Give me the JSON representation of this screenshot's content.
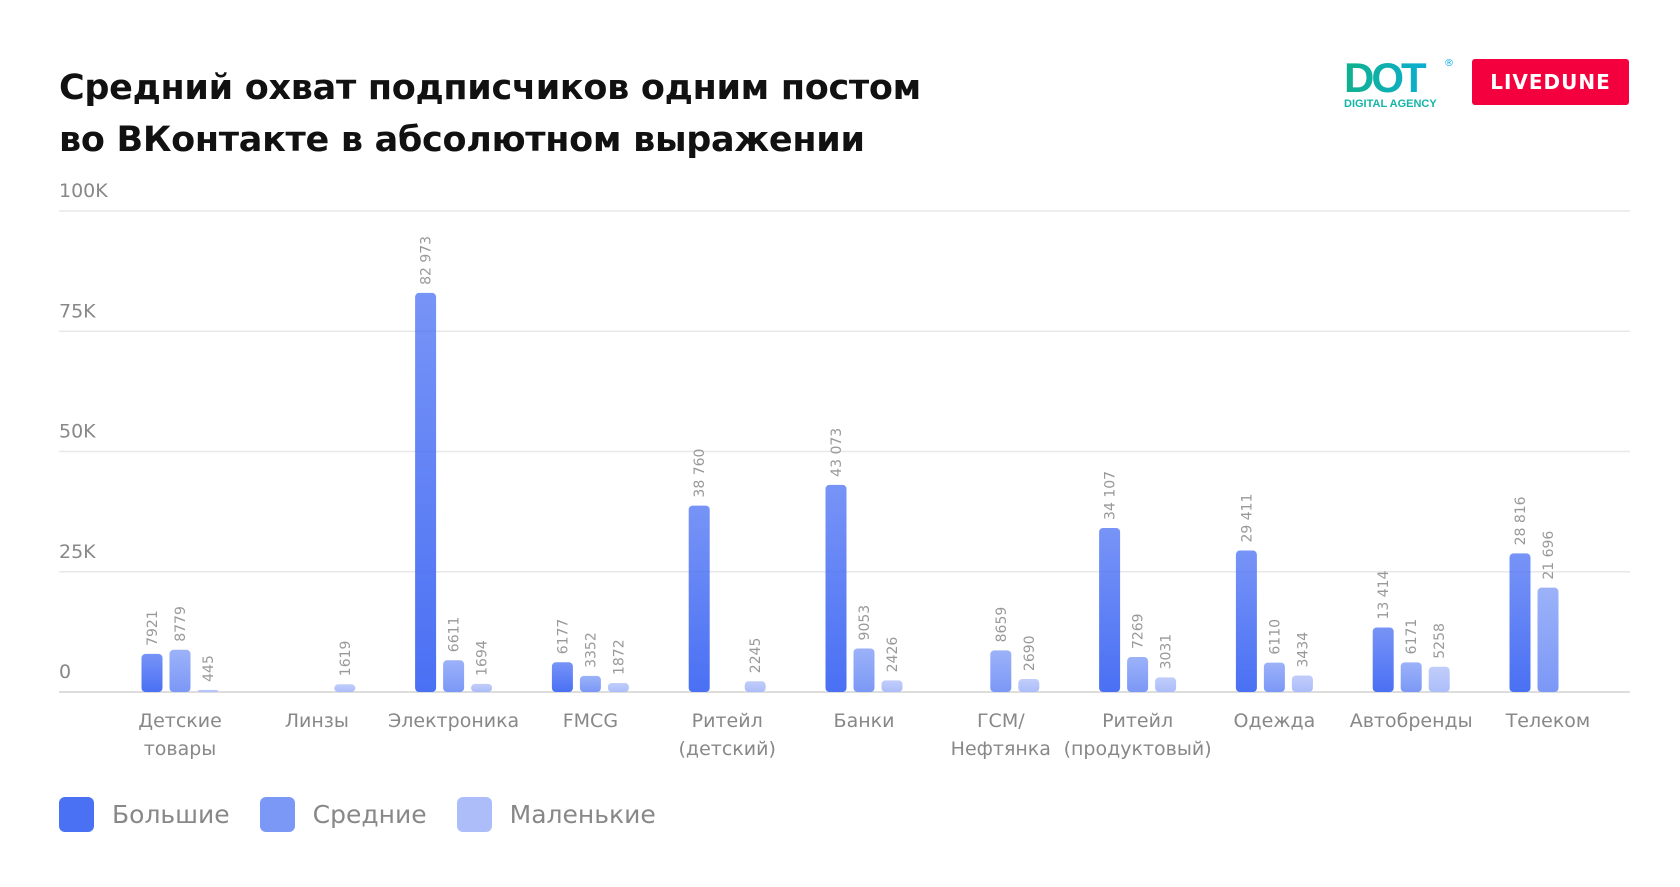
{
  "chart_data": {
    "type": "bar",
    "title": [
      "Средний охват подписчиков одним постом",
      "во ВКонтакте в абсолютном выражении"
    ],
    "categories": [
      [
        "Детские",
        "товары"
      ],
      [
        "Линзы"
      ],
      [
        "Электроника"
      ],
      [
        "FMCG"
      ],
      [
        "Ритейл",
        "(детский)"
      ],
      [
        "Банки"
      ],
      [
        "ГСМ/",
        "Нефтянка"
      ],
      [
        "Ритейл",
        "(продуктовый)"
      ],
      [
        "Одежда"
      ],
      [
        "Автобренды"
      ],
      [
        "Телеком"
      ]
    ],
    "series": [
      {
        "name": "Большие",
        "color": "#4a70f4",
        "values": [
          7921,
          null,
          82973,
          6177,
          38760,
          43073,
          null,
          34107,
          29411,
          13414,
          28816
        ]
      },
      {
        "name": "Средние",
        "color": "#7b98f6",
        "values": [
          8779,
          null,
          6611,
          3352,
          null,
          9053,
          8659,
          7269,
          6110,
          6171,
          21696
        ]
      },
      {
        "name": "Маленькие",
        "color": "#acbdf9",
        "values": [
          445,
          1619,
          1694,
          1872,
          2245,
          2426,
          2690,
          3031,
          3434,
          5258,
          null
        ]
      }
    ],
    "value_labels": [
      [
        "7921",
        null,
        "82 973",
        "6177",
        "38 760",
        "43 073",
        null,
        "34 107",
        "29 411",
        "13 414",
        "28 816"
      ],
      [
        "8779",
        null,
        "6611",
        "3352",
        null,
        "9053",
        "8659",
        "7269",
        "6110",
        "6171",
        "21 696"
      ],
      [
        "445",
        "1619",
        "1694",
        "1872",
        "2245",
        "2426",
        "2690",
        "3031",
        "3434",
        "5258",
        null
      ]
    ],
    "yticks": [
      0,
      25000,
      50000,
      75000,
      100000
    ],
    "ytick_labels": [
      "0",
      "25K",
      "50K",
      "75K",
      "100K"
    ],
    "ylim": [
      0,
      100000
    ],
    "grid": true,
    "legend_position": "bottom-left"
  },
  "logos": {
    "dot": "DOT",
    "dot_sub": "DIGITAL AGENCY",
    "livedune": "LIVEDUNE"
  }
}
